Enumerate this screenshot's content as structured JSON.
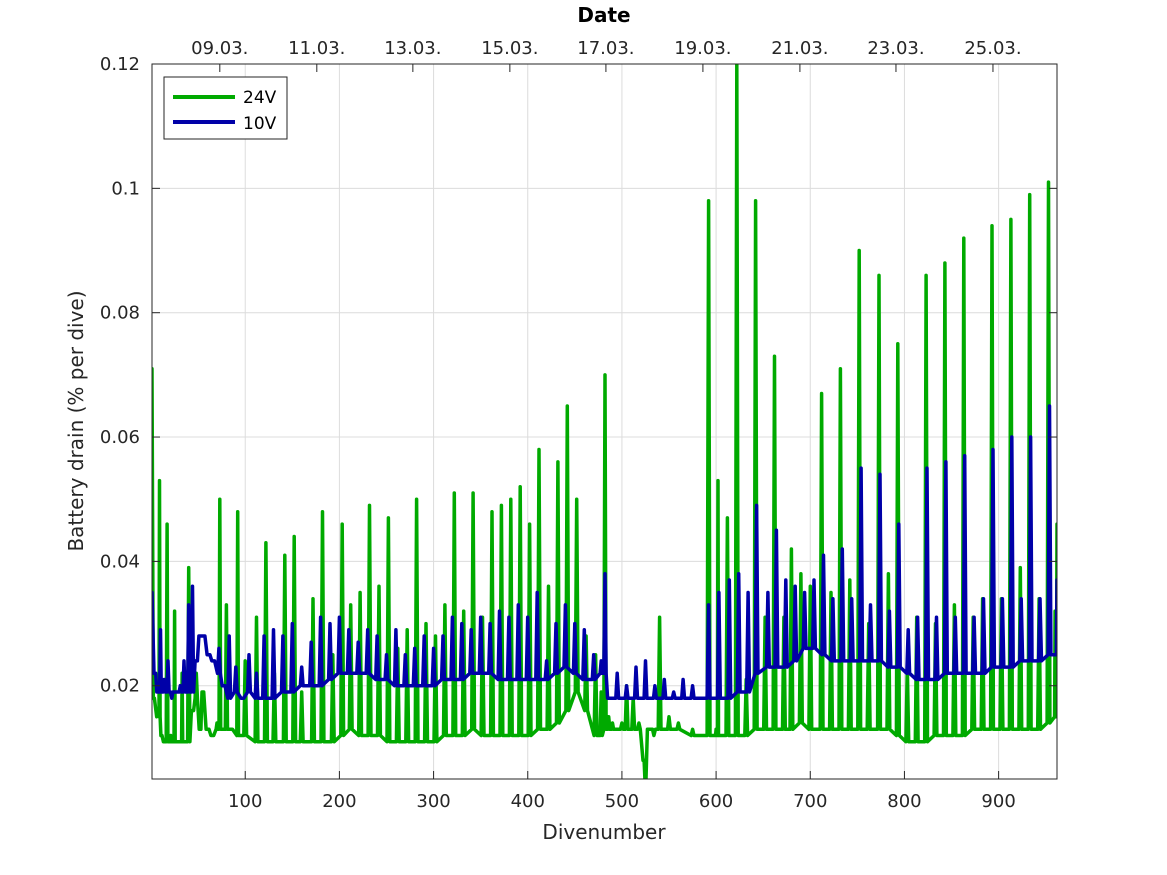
{
  "chart_data": {
    "type": "line",
    "xlabel": "Divenumber",
    "ylabel": "Battery drain (% per dive)",
    "top_axis_title": "Date",
    "xlim": [
      1,
      962
    ],
    "ylim": [
      0.005,
      0.12
    ],
    "grid": true,
    "legend_placement": "top-left",
    "x_ticks": [
      100,
      200,
      300,
      400,
      500,
      600,
      700,
      800,
      900
    ],
    "x_tick_labels": [
      "100",
      "200",
      "300",
      "400",
      "500",
      "600",
      "700",
      "800",
      "900"
    ],
    "y_ticks": [
      0.02,
      0.04,
      0.06,
      0.08,
      0.1,
      0.12
    ],
    "y_tick_labels": [
      "0.02",
      "0.04",
      "0.06",
      "0.08",
      "0.1",
      "0.12"
    ],
    "top_ticks": [
      73,
      176,
      278,
      381,
      483,
      586,
      689,
      791,
      894
    ],
    "top_tick_labels": [
      "09.03.",
      "11.03.",
      "13.03.",
      "15.03.",
      "17.03.",
      "19.03.",
      "21.03.",
      "23.03.",
      "25.03."
    ],
    "series": [
      {
        "name": "24V",
        "color": "#00aa00",
        "x": [
          1,
          3,
          6,
          9,
          11,
          14,
          17,
          21,
          23,
          25,
          30,
          33,
          35,
          40,
          44,
          48,
          52,
          55,
          60,
          65,
          70,
          73,
          76,
          80,
          85,
          92,
          95,
          100,
          112,
          122,
          131,
          142,
          152,
          160,
          172,
          182,
          193,
          203,
          212,
          222,
          232,
          242,
          252,
          262,
          272,
          282,
          292,
          302,
          312,
          322,
          332,
          342,
          352,
          362,
          372,
          382,
          392,
          402,
          412,
          422,
          432,
          442,
          452,
          462,
          472,
          478,
          482,
          486,
          490,
          500,
          505,
          512,
          518,
          523,
          525,
          528,
          534,
          540,
          550,
          560,
          575,
          592,
          600,
          602,
          612,
          622,
          632,
          642,
          652,
          662,
          672,
          680,
          690,
          700,
          712,
          722,
          732,
          742,
          752,
          762,
          773,
          783,
          793,
          803,
          813,
          823,
          833,
          843,
          853,
          863,
          873,
          883,
          893,
          903,
          913,
          923,
          933,
          943,
          953,
          960,
          962
        ],
        "values": [
          0.071,
          0.018,
          0.015,
          0.053,
          0.012,
          0.011,
          0.046,
          0.012,
          0.011,
          0.032,
          0.011,
          0.022,
          0.011,
          0.039,
          0.016,
          0.022,
          0.013,
          0.019,
          0.013,
          0.012,
          0.014,
          0.05,
          0.013,
          0.033,
          0.013,
          0.048,
          0.012,
          0.024,
          0.031,
          0.043,
          0.022,
          0.041,
          0.044,
          0.019,
          0.034,
          0.048,
          0.025,
          0.046,
          0.033,
          0.035,
          0.049,
          0.036,
          0.047,
          0.026,
          0.029,
          0.05,
          0.03,
          0.028,
          0.033,
          0.051,
          0.032,
          0.051,
          0.031,
          0.048,
          0.049,
          0.05,
          0.052,
          0.046,
          0.058,
          0.036,
          0.056,
          0.065,
          0.05,
          0.028,
          0.025,
          0.019,
          0.07,
          0.015,
          0.014,
          0.014,
          0.02,
          0.018,
          0.014,
          0.008,
          0.005,
          0.013,
          0.012,
          0.031,
          0.015,
          0.014,
          0.013,
          0.098,
          0.013,
          0.053,
          0.047,
          0.12,
          0.021,
          0.098,
          0.031,
          0.073,
          0.031,
          0.042,
          0.038,
          0.036,
          0.067,
          0.035,
          0.071,
          0.037,
          0.09,
          0.03,
          0.086,
          0.038,
          0.075,
          0.023,
          0.031,
          0.086,
          0.03,
          0.088,
          0.033,
          0.092,
          0.031,
          0.034,
          0.094,
          0.034,
          0.095,
          0.039,
          0.099,
          0.034,
          0.101,
          0.032,
          0.046
        ],
        "base": [
          0.071,
          0.018,
          0.016,
          0.015,
          0.012,
          0.011,
          0.011,
          0.011,
          0.011,
          0.011,
          0.011,
          0.011,
          0.011,
          0.011,
          0.016,
          0.018,
          0.013,
          0.019,
          0.013,
          0.012,
          0.013,
          0.013,
          0.013,
          0.013,
          0.013,
          0.012,
          0.012,
          0.012,
          0.011,
          0.011,
          0.011,
          0.011,
          0.011,
          0.011,
          0.011,
          0.011,
          0.011,
          0.012,
          0.013,
          0.012,
          0.012,
          0.012,
          0.011,
          0.011,
          0.011,
          0.011,
          0.011,
          0.011,
          0.012,
          0.012,
          0.012,
          0.013,
          0.012,
          0.012,
          0.012,
          0.012,
          0.012,
          0.012,
          0.013,
          0.013,
          0.014,
          0.016,
          0.019,
          0.016,
          0.012,
          0.012,
          0.013,
          0.013,
          0.013,
          0.013,
          0.013,
          0.013,
          0.013,
          0.008,
          0.005,
          0.013,
          0.013,
          0.013,
          0.013,
          0.013,
          0.012,
          0.012,
          0.012,
          0.012,
          0.012,
          0.012,
          0.012,
          0.013,
          0.013,
          0.013,
          0.013,
          0.013,
          0.014,
          0.013,
          0.013,
          0.013,
          0.013,
          0.013,
          0.013,
          0.013,
          0.013,
          0.013,
          0.012,
          0.011,
          0.011,
          0.011,
          0.012,
          0.012,
          0.012,
          0.012,
          0.013,
          0.013,
          0.013,
          0.013,
          0.013,
          0.013,
          0.013,
          0.013,
          0.014,
          0.015,
          0.015
        ]
      },
      {
        "name": "10V",
        "color": "#0000a8",
        "x": [
          1,
          4,
          7,
          10,
          14,
          18,
          22,
          27,
          31,
          35,
          40,
          44,
          48,
          52,
          56,
          61,
          66,
          72,
          77,
          83,
          90,
          97,
          104,
          112,
          120,
          130,
          140,
          150,
          160,
          170,
          180,
          190,
          200,
          210,
          220,
          230,
          240,
          250,
          260,
          270,
          280,
          290,
          300,
          310,
          320,
          330,
          340,
          350,
          360,
          370,
          380,
          390,
          400,
          410,
          420,
          430,
          440,
          450,
          460,
          470,
          478,
          482,
          486,
          495,
          505,
          515,
          525,
          535,
          545,
          555,
          565,
          575,
          585,
          592,
          603,
          614,
          624,
          634,
          643,
          655,
          664,
          674,
          684,
          694,
          704,
          714,
          724,
          734,
          744,
          754,
          764,
          774,
          784,
          794,
          804,
          814,
          824,
          834,
          844,
          854,
          864,
          874,
          884,
          894,
          904,
          914,
          924,
          934,
          944,
          954,
          962
        ],
        "values": [
          0.035,
          0.022,
          0.019,
          0.029,
          0.021,
          0.024,
          0.018,
          0.019,
          0.02,
          0.024,
          0.033,
          0.036,
          0.024,
          0.028,
          0.028,
          0.025,
          0.024,
          0.026,
          0.02,
          0.028,
          0.023,
          0.018,
          0.025,
          0.022,
          0.028,
          0.029,
          0.028,
          0.03,
          0.023,
          0.027,
          0.031,
          0.03,
          0.031,
          0.029,
          0.027,
          0.029,
          0.028,
          0.025,
          0.029,
          0.025,
          0.026,
          0.028,
          0.026,
          0.028,
          0.031,
          0.03,
          0.029,
          0.031,
          0.03,
          0.032,
          0.031,
          0.033,
          0.031,
          0.035,
          0.024,
          0.03,
          0.033,
          0.03,
          0.029,
          0.025,
          0.024,
          0.038,
          0.018,
          0.022,
          0.02,
          0.023,
          0.024,
          0.02,
          0.021,
          0.019,
          0.021,
          0.02,
          0.018,
          0.033,
          0.035,
          0.037,
          0.038,
          0.035,
          0.049,
          0.035,
          0.045,
          0.037,
          0.036,
          0.035,
          0.037,
          0.041,
          0.034,
          0.042,
          0.034,
          0.055,
          0.033,
          0.054,
          0.032,
          0.046,
          0.029,
          0.031,
          0.055,
          0.031,
          0.056,
          0.031,
          0.057,
          0.031,
          0.034,
          0.058,
          0.034,
          0.06,
          0.034,
          0.06,
          0.034,
          0.065,
          0.037
        ],
        "base": [
          0.035,
          0.022,
          0.019,
          0.019,
          0.019,
          0.019,
          0.019,
          0.019,
          0.019,
          0.019,
          0.019,
          0.019,
          0.024,
          0.028,
          0.028,
          0.025,
          0.024,
          0.022,
          0.02,
          0.018,
          0.019,
          0.018,
          0.019,
          0.018,
          0.018,
          0.018,
          0.019,
          0.019,
          0.02,
          0.02,
          0.02,
          0.021,
          0.022,
          0.022,
          0.022,
          0.022,
          0.021,
          0.021,
          0.02,
          0.02,
          0.02,
          0.02,
          0.02,
          0.021,
          0.021,
          0.021,
          0.022,
          0.022,
          0.022,
          0.021,
          0.021,
          0.021,
          0.021,
          0.021,
          0.021,
          0.022,
          0.023,
          0.022,
          0.021,
          0.021,
          0.022,
          0.022,
          0.018,
          0.018,
          0.018,
          0.018,
          0.018,
          0.018,
          0.018,
          0.018,
          0.018,
          0.018,
          0.018,
          0.018,
          0.018,
          0.018,
          0.019,
          0.019,
          0.022,
          0.023,
          0.023,
          0.023,
          0.024,
          0.026,
          0.026,
          0.025,
          0.024,
          0.024,
          0.024,
          0.024,
          0.024,
          0.024,
          0.023,
          0.023,
          0.022,
          0.021,
          0.021,
          0.021,
          0.022,
          0.022,
          0.022,
          0.022,
          0.022,
          0.023,
          0.023,
          0.023,
          0.024,
          0.024,
          0.024,
          0.025,
          0.025
        ]
      }
    ]
  }
}
